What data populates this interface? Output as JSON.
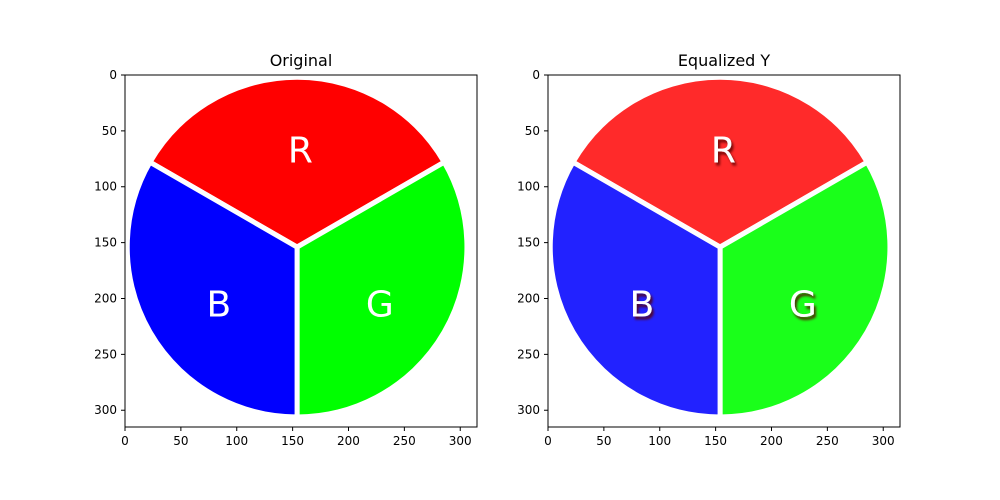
{
  "chart_data": [
    {
      "type": "image",
      "title": "Original",
      "xlim": [
        0,
        315
      ],
      "ylim": [
        315,
        0
      ],
      "xticks": [
        0,
        50,
        100,
        150,
        200,
        250,
        300
      ],
      "yticks": [
        0,
        50,
        100,
        150,
        200,
        250,
        300
      ],
      "circle": {
        "cx": 154,
        "cy": 154,
        "r": 152
      },
      "sectors": [
        {
          "label": "R",
          "color": "#ff0000",
          "start_deg": 210,
          "end_deg": 330,
          "label_x": 157,
          "label_y": 68
        },
        {
          "label": "G",
          "color": "#00ff00",
          "start_deg": 330,
          "end_deg": 90,
          "label_x": 228,
          "label_y": 206
        },
        {
          "label": "B",
          "color": "#0000ff",
          "start_deg": 90,
          "end_deg": 210,
          "label_x": 84,
          "label_y": 206
        }
      ],
      "label_shadow": false
    },
    {
      "type": "image",
      "title": "Equalized Y",
      "xlim": [
        0,
        315
      ],
      "ylim": [
        315,
        0
      ],
      "xticks": [
        0,
        50,
        100,
        150,
        200,
        250,
        300
      ],
      "yticks": [
        0,
        50,
        100,
        150,
        200,
        250,
        300
      ],
      "circle": {
        "cx": 154,
        "cy": 154,
        "r": 152
      },
      "sectors": [
        {
          "label": "R",
          "color": "#ff2a2a",
          "start_deg": 210,
          "end_deg": 330,
          "label_x": 157,
          "label_y": 68
        },
        {
          "label": "G",
          "color": "#1aff1a",
          "start_deg": 330,
          "end_deg": 90,
          "label_x": 228,
          "label_y": 206
        },
        {
          "label": "B",
          "color": "#2222ff",
          "start_deg": 90,
          "end_deg": 210,
          "label_x": 84,
          "label_y": 206
        }
      ],
      "label_shadow": true
    }
  ]
}
